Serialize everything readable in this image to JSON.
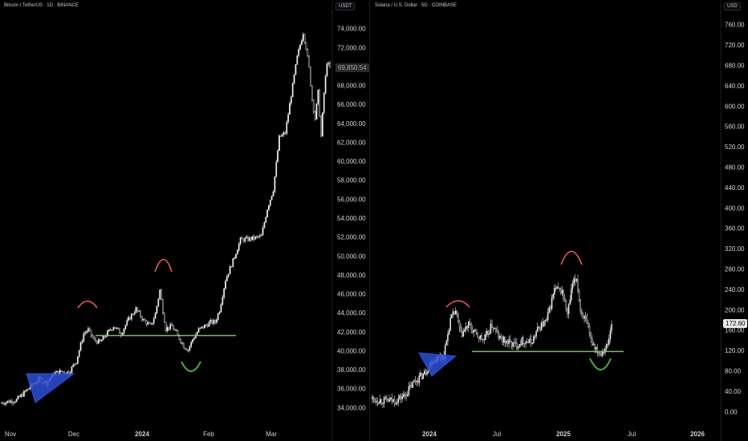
{
  "colors": {
    "background": "#000000",
    "candle_up": "#ffffff",
    "candle_down": "#000000",
    "wick": "#cfcfcf",
    "axis_text": "#d1d4dc",
    "support_line": "#7dbb6b",
    "triangle_fill": "#2d4fd6",
    "top_arc": "#f05a5a",
    "bottom_arc": "#4fa34a"
  },
  "chart_data": [
    {
      "type": "candlestick",
      "title": "Bitcoin / TetherUS · 1D · BINANCE",
      "unit": "USDT",
      "current_price_label": "69,850.54",
      "y_tick_labels": [
        "34,000.00",
        "36,000.00",
        "38,000.00",
        "40,000.00",
        "42,000.00",
        "44,000.00",
        "46,000.00",
        "48,000.00",
        "50,000.00",
        "52,000.00",
        "54,000.00",
        "56,000.00",
        "58,000.00",
        "60,000.00",
        "62,000.00",
        "64,000.00",
        "66,000.00",
        "68,000.00",
        "70,000.00",
        "72,000.00",
        "74,000.00"
      ],
      "x_tick_labels": [
        "Nov",
        "Dec",
        "2024",
        "Feb",
        "Mar"
      ],
      "ylim": [
        32500,
        75500
      ],
      "price_path": [
        [
          0,
          34500
        ],
        [
          10,
          34800
        ],
        [
          20,
          36300
        ],
        [
          25,
          37000
        ],
        [
          30,
          36600
        ],
        [
          35,
          37600
        ],
        [
          40,
          37800
        ],
        [
          45,
          37700
        ],
        [
          50,
          38900
        ],
        [
          55,
          41800
        ],
        [
          58,
          42200
        ],
        [
          62,
          41100
        ],
        [
          66,
          40900
        ],
        [
          70,
          41700
        ],
        [
          75,
          42600
        ],
        [
          80,
          41800
        ],
        [
          85,
          43300
        ],
        [
          90,
          44400
        ],
        [
          95,
          43200
        ],
        [
          100,
          42600
        ],
        [
          103,
          43900
        ],
        [
          106,
          46400
        ],
        [
          108,
          44200
        ],
        [
          110,
          42300
        ],
        [
          114,
          42600
        ],
        [
          118,
          41600
        ],
        [
          122,
          40500
        ],
        [
          125,
          40100
        ],
        [
          128,
          41200
        ],
        [
          132,
          42200
        ],
        [
          136,
          42600
        ],
        [
          140,
          43000
        ],
        [
          143,
          43000
        ],
        [
          146,
          44300
        ],
        [
          150,
          47500
        ],
        [
          155,
          49500
        ],
        [
          160,
          51700
        ],
        [
          166,
          51800
        ],
        [
          170,
          51900
        ],
        [
          174,
          52100
        ],
        [
          178,
          55000
        ],
        [
          182,
          57000
        ],
        [
          186,
          62500
        ],
        [
          190,
          63000
        ],
        [
          194,
          67000
        ],
        [
          198,
          71000
        ],
        [
          200,
          72300
        ],
        [
          202,
          73600
        ],
        [
          204,
          72000
        ],
        [
          206,
          69800
        ],
        [
          208,
          66500
        ],
        [
          210,
          64500
        ],
        [
          212,
          67300
        ],
        [
          214,
          62600
        ],
        [
          216,
          67200
        ],
        [
          218,
          70500
        ],
        [
          220,
          69800
        ]
      ],
      "support_level": 41600,
      "annotations": [
        "ascending-triangle",
        "left-top-arc",
        "right-top-arc",
        "bottom-arc",
        "support-line"
      ]
    },
    {
      "type": "candlestick",
      "title": "Solana / U.S. Dollar · 5D · COINBASE",
      "unit": "USD",
      "current_price_label": "172.60",
      "y_tick_labels": [
        "0.00",
        "40.00",
        "80.00",
        "120.00",
        "160.00",
        "200.00",
        "240.00",
        "280.00",
        "320.00",
        "360.00",
        "400.00",
        "440.00",
        "480.00",
        "520.00",
        "560.00",
        "600.00",
        "640.00",
        "680.00",
        "720.00",
        "760.00"
      ],
      "x_tick_labels": [
        "2024",
        "Jul",
        "2025",
        "Jul",
        "2026"
      ],
      "ylim": [
        -20,
        780
      ],
      "price_path": [
        [
          0,
          25
        ],
        [
          10,
          21
        ],
        [
          18,
          22
        ],
        [
          25,
          32
        ],
        [
          32,
          58
        ],
        [
          40,
          75
        ],
        [
          46,
          100
        ],
        [
          52,
          108
        ],
        [
          55,
          110
        ],
        [
          60,
          180
        ],
        [
          64,
          197
        ],
        [
          68,
          150
        ],
        [
          74,
          170
        ],
        [
          80,
          150
        ],
        [
          86,
          140
        ],
        [
          92,
          170
        ],
        [
          98,
          143
        ],
        [
          104,
          136
        ],
        [
          110,
          130
        ],
        [
          116,
          140
        ],
        [
          122,
          135
        ],
        [
          128,
          165
        ],
        [
          134,
          178
        ],
        [
          140,
          240
        ],
        [
          146,
          236
        ],
        [
          150,
          190
        ],
        [
          154,
          250
        ],
        [
          157,
          262
        ],
        [
          160,
          200
        ],
        [
          164,
          178
        ],
        [
          168,
          140
        ],
        [
          172,
          125
        ],
        [
          175,
          115
        ],
        [
          178,
          123
        ],
        [
          181,
          130
        ],
        [
          184,
          172
        ]
      ],
      "support_level": 118,
      "annotations": [
        "ascending-triangle",
        "left-top-arc",
        "right-top-arc",
        "bottom-arc",
        "support-line"
      ]
    }
  ]
}
